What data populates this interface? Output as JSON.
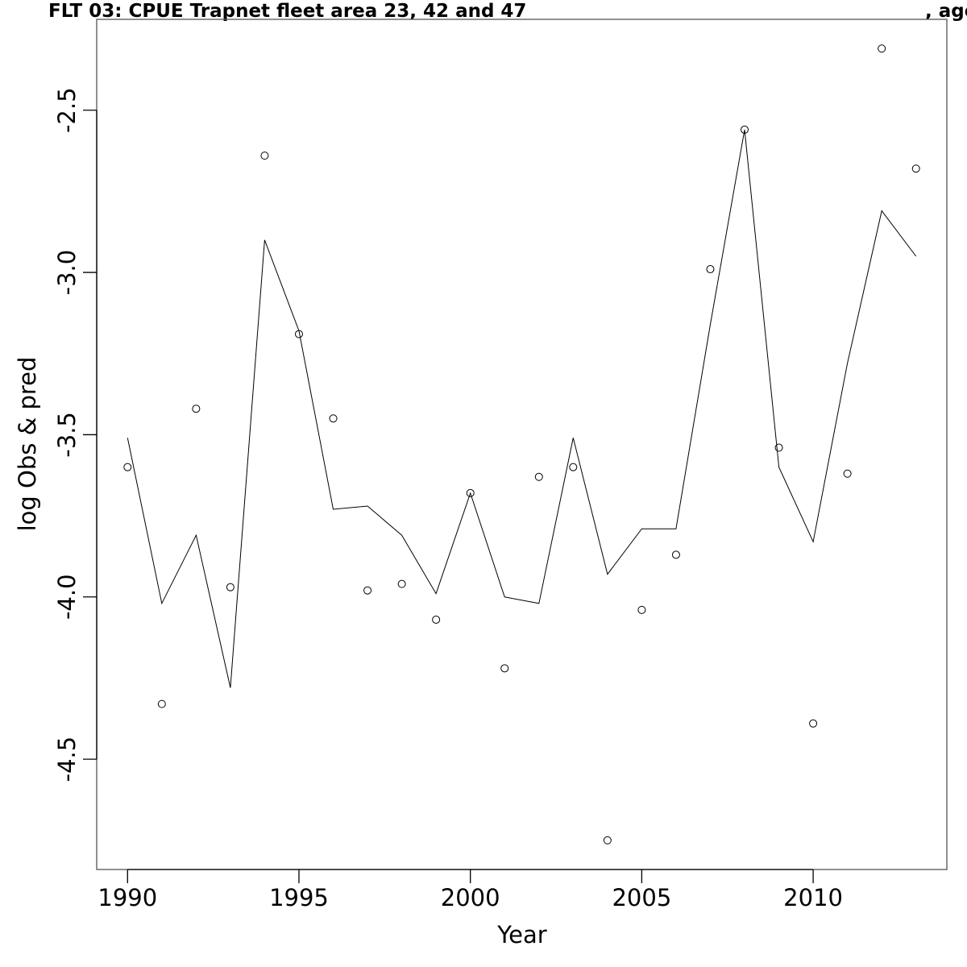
{
  "chart_data": {
    "type": "line",
    "title": "FLT 03: CPUE Trapnet fleet area 23, 42 and 47",
    "title_suffix": ", age",
    "xlabel": "Year",
    "ylabel": "log Obs & pred",
    "xlim": [
      1989.1,
      2013.9
    ],
    "ylim": [
      -4.84,
      -2.22
    ],
    "x_ticks": [
      1990,
      1995,
      2000,
      2005,
      2010
    ],
    "y_ticks": [
      -4.5,
      -4.0,
      -3.5,
      -3.0,
      -2.5
    ],
    "y_tick_labels": [
      "-4.5",
      "-4.0",
      "-3.5",
      "-3.0",
      "-2.5"
    ],
    "grid": false,
    "legend": "none",
    "x": [
      1990,
      1991,
      1992,
      1993,
      1994,
      1995,
      1996,
      1997,
      1998,
      1999,
      2000,
      2001,
      2002,
      2003,
      2004,
      2005,
      2006,
      2007,
      2008,
      2009,
      2010,
      2011,
      2012,
      2013
    ],
    "series": [
      {
        "style": "points",
        "values": [
          -3.6,
          -4.33,
          -3.42,
          -3.97,
          -2.64,
          -3.19,
          -3.45,
          -3.98,
          -3.96,
          -4.07,
          -3.68,
          -4.22,
          -3.63,
          -3.6,
          -4.75,
          -4.04,
          -3.87,
          -2.99,
          -2.56,
          -3.54,
          -4.39,
          -3.62,
          -2.31,
          -2.68
        ]
      },
      {
        "style": "line",
        "values": [
          -3.51,
          -4.02,
          -3.81,
          -4.28,
          -2.9,
          -3.18,
          -3.73,
          -3.72,
          -3.81,
          -3.99,
          -3.68,
          -4.0,
          -4.02,
          -3.51,
          -3.93,
          -3.79,
          -3.79,
          -3.16,
          -2.56,
          -3.6,
          -3.83,
          -3.28,
          -2.81,
          -2.95
        ]
      }
    ]
  }
}
